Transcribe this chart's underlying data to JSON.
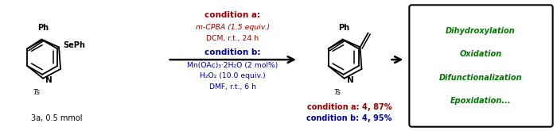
{
  "background": "#ffffff",
  "fig_width": 7.0,
  "fig_height": 1.65,
  "dpi": 100,
  "cond_a_label": "condition a:",
  "cond_a_line1": "m-CPBA (1.5 equiv.)",
  "cond_a_line2": "DCM, r.t., 24 h",
  "cond_b_label": "condition b:",
  "cond_b_line1": "Mn(OAc)₃·2H₂O (2 mol%)",
  "cond_b_line2": "H₂O₂ (10.0 equiv.)",
  "cond_b_line3": "DMF, r.t., 6 h",
  "box_lines": [
    "Dihydroxylation",
    "Oxidation",
    "Difunctionalization",
    "Epoxidation..."
  ],
  "color_dark_red": "#990000",
  "color_blue": "#000099",
  "color_green": "#007700",
  "color_black": "#000000"
}
